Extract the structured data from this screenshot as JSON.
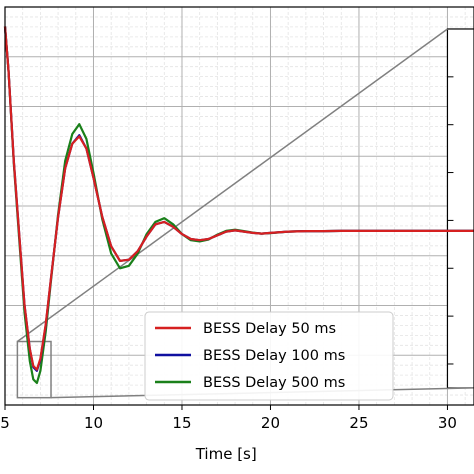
{
  "chart_data": {
    "type": "line",
    "title": "",
    "xlabel": "Time [s]",
    "ylabel": "",
    "xlim": [
      5,
      31.5
    ],
    "xticks": [
      5,
      10,
      15,
      20,
      25,
      30
    ],
    "xtick_labels": [
      "5",
      "10",
      "15",
      "20",
      "25",
      "30"
    ],
    "grid": true,
    "minor_grid": true,
    "legend_position": "lower-center",
    "colors": {
      "bess_50ms": "#d62020",
      "bess_100ms": "#1010a0",
      "bess_500ms": "#1a801a",
      "zoom": "#808080"
    },
    "series": [
      {
        "name": "BESS Delay 50 ms",
        "x": [
          5.0,
          5.2,
          5.5,
          5.8,
          6.1,
          6.4,
          6.6,
          6.8,
          7.0,
          7.3,
          7.6,
          8.0,
          8.4,
          8.8,
          9.2,
          9.6,
          10.0,
          10.5,
          11.0,
          11.5,
          12.0,
          12.5,
          13.0,
          13.5,
          14.0,
          14.5,
          15.0,
          15.5,
          16.0,
          16.5,
          17.0,
          17.5,
          18.0,
          18.5,
          19.0,
          19.5,
          20.0,
          21.0,
          22.0,
          23.0,
          24.0,
          25.0,
          26.0,
          28.0,
          30.0,
          31.5
        ],
        "y": [
          1.0,
          0.82,
          0.45,
          0.15,
          -0.14,
          -0.32,
          -0.39,
          -0.405,
          -0.36,
          -0.22,
          -0.03,
          0.22,
          0.42,
          0.52,
          0.55,
          0.5,
          0.38,
          0.22,
          0.1,
          0.04,
          0.045,
          0.08,
          0.14,
          0.19,
          0.2,
          0.18,
          0.15,
          0.13,
          0.125,
          0.13,
          0.145,
          0.16,
          0.165,
          0.16,
          0.155,
          0.152,
          0.155,
          0.16,
          0.162,
          0.162,
          0.163,
          0.163,
          0.163,
          0.163,
          0.163,
          0.163
        ]
      },
      {
        "name": "BESS Delay 100 ms",
        "x": [
          5.0,
          5.2,
          5.5,
          5.8,
          6.1,
          6.4,
          6.6,
          6.8,
          7.0,
          7.3,
          7.6,
          8.0,
          8.4,
          8.8,
          9.2,
          9.6,
          10.0,
          10.5,
          11.0,
          11.5,
          12.0,
          12.5,
          13.0,
          13.5,
          14.0,
          14.5,
          15.0,
          15.5,
          16.0,
          16.5,
          17.0,
          17.5,
          18.0,
          18.5,
          19.0,
          19.5,
          20.0,
          21.0,
          22.0,
          23.0,
          24.0,
          25.0,
          26.0,
          28.0,
          30.0,
          31.5
        ],
        "y": [
          1.0,
          0.82,
          0.45,
          0.15,
          -0.14,
          -0.32,
          -0.395,
          -0.41,
          -0.365,
          -0.225,
          -0.03,
          0.22,
          0.42,
          0.52,
          0.555,
          0.5,
          0.38,
          0.22,
          0.1,
          0.04,
          0.045,
          0.08,
          0.14,
          0.19,
          0.2,
          0.18,
          0.15,
          0.13,
          0.125,
          0.13,
          0.145,
          0.16,
          0.165,
          0.16,
          0.155,
          0.152,
          0.155,
          0.16,
          0.162,
          0.162,
          0.163,
          0.163,
          0.163,
          0.163,
          0.163,
          0.163
        ]
      },
      {
        "name": "BESS Delay 500 ms",
        "x": [
          5.0,
          5.2,
          5.5,
          5.8,
          6.1,
          6.4,
          6.6,
          6.8,
          7.0,
          7.3,
          7.6,
          8.0,
          8.4,
          8.8,
          9.2,
          9.6,
          10.0,
          10.5,
          11.0,
          11.5,
          12.0,
          12.5,
          13.0,
          13.5,
          14.0,
          14.5,
          15.0,
          15.5,
          16.0,
          16.5,
          17.0,
          17.5,
          18.0,
          18.5,
          19.0,
          19.5,
          20.0,
          21.0,
          22.0,
          23.0,
          24.0,
          25.0,
          26.0,
          28.0,
          30.0,
          31.5
        ],
        "y": [
          1.0,
          0.82,
          0.44,
          0.13,
          -0.17,
          -0.37,
          -0.445,
          -0.46,
          -0.41,
          -0.25,
          -0.04,
          0.23,
          0.45,
          0.56,
          0.6,
          0.54,
          0.4,
          0.21,
          0.07,
          0.01,
          0.02,
          0.07,
          0.15,
          0.2,
          0.215,
          0.19,
          0.15,
          0.125,
          0.12,
          0.128,
          0.148,
          0.163,
          0.168,
          0.162,
          0.156,
          0.152,
          0.154,
          0.16,
          0.162,
          0.162,
          0.163,
          0.163,
          0.163,
          0.163,
          0.163,
          0.163
        ]
      }
    ],
    "legend": [
      "BESS Delay 50 ms",
      "BESS Delay 100 ms",
      "BESS Delay 500 ms"
    ]
  }
}
